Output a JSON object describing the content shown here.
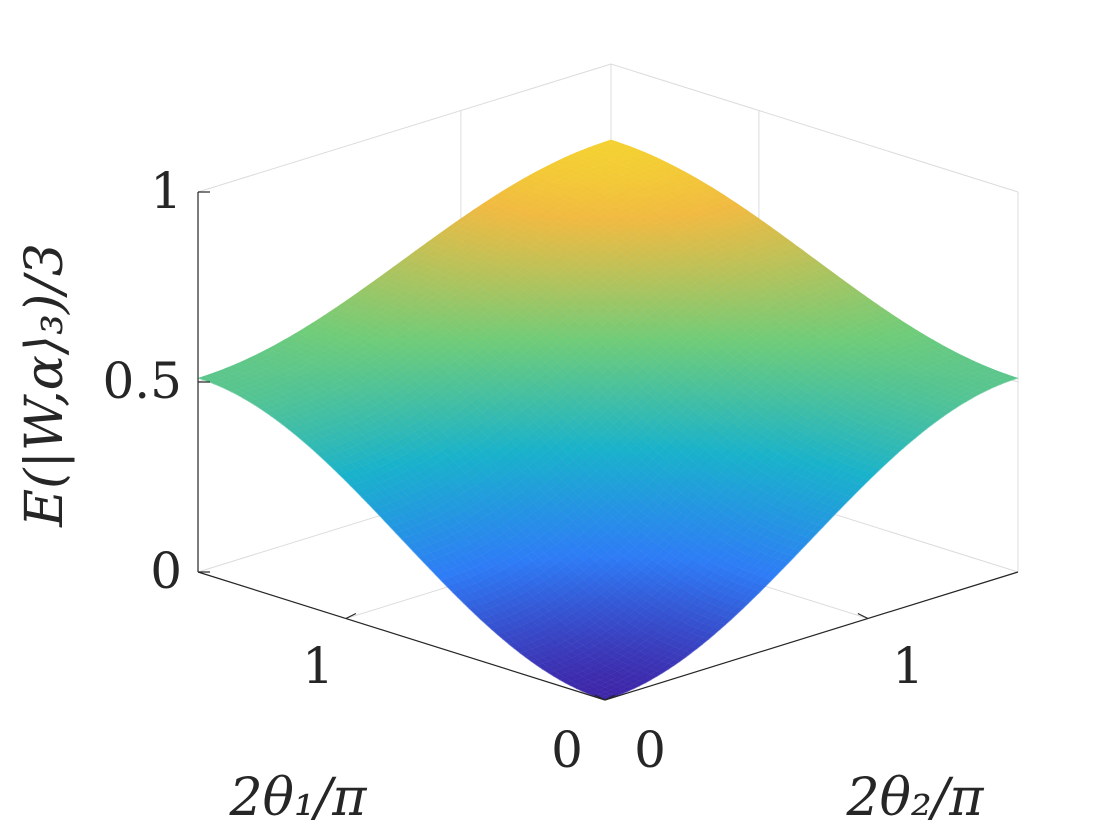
{
  "chart_data": {
    "type": "surface",
    "title": "",
    "xlabel": "2θ₂/π",
    "ylabel": "2θ₁/π",
    "zlabel": "E(|W,α⟩₃)/3",
    "xlim": [
      0,
      1.571
    ],
    "ylim": [
      0,
      1.571
    ],
    "zlim": [
      0,
      1
    ],
    "x_ticks": [
      "0",
      "1"
    ],
    "y_ticks": [
      "0",
      "1"
    ],
    "z_ticks": [
      "0",
      "0.5",
      "1"
    ],
    "x_tick_values": [
      0,
      1
    ],
    "y_tick_values": [
      0,
      1
    ],
    "z_tick_values": [
      0,
      0.5,
      1
    ],
    "grid": true,
    "box": false,
    "colormap": "parula",
    "colormap_stops": [
      "#3e26a8",
      "#2e7cf6",
      "#19b2cb",
      "#6fcc79",
      "#f1ba41",
      "#f9fa14"
    ],
    "surface_samples": [
      {
        "x": 0.0,
        "y": 0.0,
        "z": 0.0
      },
      {
        "x": 1.571,
        "y": 0.0,
        "z": 0.0
      },
      {
        "x": 0.0,
        "y": 1.571,
        "z": 0.0
      },
      {
        "x": 0.785,
        "y": 0.0,
        "z": 0.0
      },
      {
        "x": 0.0,
        "y": 0.785,
        "z": 0.0
      },
      {
        "x": 1.571,
        "y": 1.571,
        "z": 0.8
      },
      {
        "x": 1.571,
        "y": 0.785,
        "z": 0.5
      },
      {
        "x": 0.785,
        "y": 1.571,
        "z": 0.5
      },
      {
        "x": 0.785,
        "y": 0.785,
        "z": 0.5
      },
      {
        "x": 1.15,
        "y": 1.15,
        "z": 0.92
      },
      {
        "x": 1.571,
        "y": 1.2,
        "z": 0.81
      },
      {
        "x": 1.2,
        "y": 1.571,
        "z": 0.81
      }
    ]
  }
}
